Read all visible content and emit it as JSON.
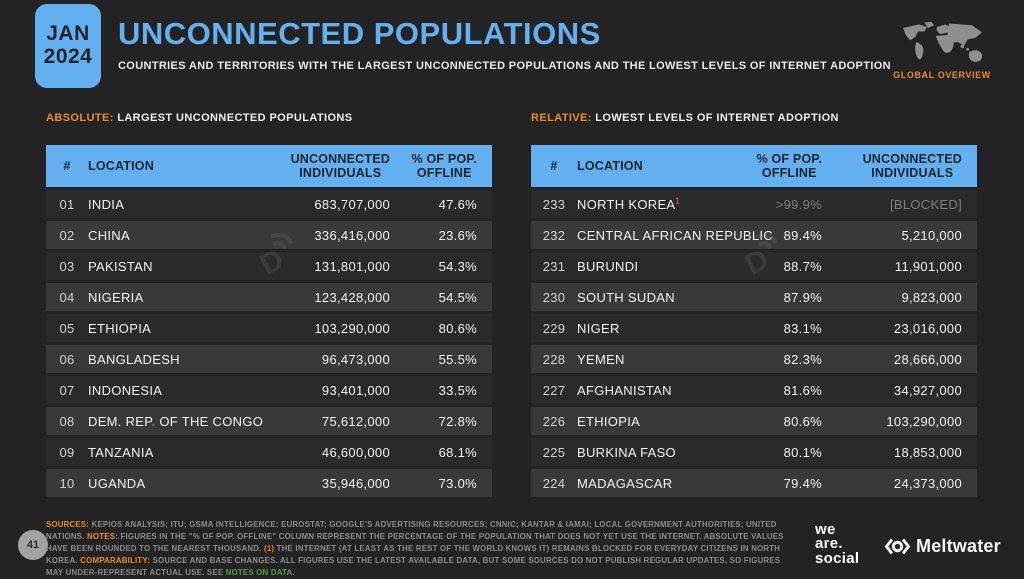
{
  "colors": {
    "accent_blue": "#62b0ef",
    "accent_orange": "#ee8a1f",
    "link_green": "#55a045",
    "background": "#232323",
    "row_odd": "#2a2a2a",
    "row_even": "#393939"
  },
  "header": {
    "date_line1": "JAN",
    "date_line2": "2024",
    "title": "UNCONNECTED POPULATIONS",
    "subtitle": "COUNTRIES AND TERRITORIES WITH THE LARGEST UNCONNECTED POPULATIONS AND THE LOWEST LEVELS OF INTERNET ADOPTION",
    "overview_label": "GLOBAL OVERVIEW"
  },
  "chart_data": [
    {
      "type": "table",
      "label_prefix": "ABSOLUTE:",
      "label_title": " LARGEST UNCONNECTED POPULATIONS",
      "columns": [
        "#",
        "LOCATION",
        "UNCONNECTED|INDIVIDUALS",
        "% OF POP.|OFFLINE"
      ],
      "rows": [
        {
          "rank": "01",
          "location": "INDIA",
          "v1": "683,707,000",
          "v2": "47.6%"
        },
        {
          "rank": "02",
          "location": "CHINA",
          "v1": "336,416,000",
          "v2": "23.6%"
        },
        {
          "rank": "03",
          "location": "PAKISTAN",
          "v1": "131,801,000",
          "v2": "54.3%"
        },
        {
          "rank": "04",
          "location": "NIGERIA",
          "v1": "123,428,000",
          "v2": "54.5%"
        },
        {
          "rank": "05",
          "location": "ETHIOPIA",
          "v1": "103,290,000",
          "v2": "80.6%"
        },
        {
          "rank": "06",
          "location": "BANGLADESH",
          "v1": "96,473,000",
          "v2": "55.5%"
        },
        {
          "rank": "07",
          "location": "INDONESIA",
          "v1": "93,401,000",
          "v2": "33.5%"
        },
        {
          "rank": "08",
          "location": "DEM. REP. OF THE CONGO",
          "v1": "75,612,000",
          "v2": "72.8%"
        },
        {
          "rank": "09",
          "location": "TANZANIA",
          "v1": "46,600,000",
          "v2": "68.1%"
        },
        {
          "rank": "10",
          "location": "UGANDA",
          "v1": "35,946,000",
          "v2": "73.0%"
        }
      ]
    },
    {
      "type": "table",
      "label_prefix": "RELATIVE:",
      "label_title": " LOWEST LEVELS OF INTERNET ADOPTION",
      "columns": [
        "#",
        "LOCATION",
        "% OF POP.|OFFLINE",
        "UNCONNECTED|INDIVIDUALS"
      ],
      "rows": [
        {
          "rank": "233",
          "location": "NORTH KOREA",
          "sup": "1",
          "v1": ">99.9%",
          "v2": "[BLOCKED]",
          "muted": true
        },
        {
          "rank": "232",
          "location": "CENTRAL AFRICAN REPUBLIC",
          "v1": "89.4%",
          "v2": "5,210,000"
        },
        {
          "rank": "231",
          "location": "BURUNDI",
          "v1": "88.7%",
          "v2": "11,901,000"
        },
        {
          "rank": "230",
          "location": "SOUTH SUDAN",
          "v1": "87.9%",
          "v2": "9,823,000"
        },
        {
          "rank": "229",
          "location": "NIGER",
          "v1": "83.1%",
          "v2": "23,016,000"
        },
        {
          "rank": "228",
          "location": "YEMEN",
          "v1": "82.3%",
          "v2": "28,666,000"
        },
        {
          "rank": "227",
          "location": "AFGHANISTAN",
          "v1": "81.6%",
          "v2": "34,927,000"
        },
        {
          "rank": "226",
          "location": "ETHIOPIA",
          "v1": "80.6%",
          "v2": "103,290,000"
        },
        {
          "rank": "225",
          "location": "BURKINA FASO",
          "v1": "80.1%",
          "v2": "18,853,000"
        },
        {
          "rank": "224",
          "location": "MADAGASCAR",
          "v1": "79.4%",
          "v2": "24,373,000"
        }
      ]
    }
  ],
  "footer": {
    "page_number": "41",
    "segments": [
      {
        "t": "SOURCES:",
        "s": "orange-bold"
      },
      {
        "t": " KEPIOS ANALYSIS; ITU; GSMA INTELLIGENCE; EUROSTAT; GOOGLE'S ADVERTISING RESOURCES; CNNIC; KANTAR & IAMAI; LOCAL GOVERNMENT AUTHORITIES; UNITED NATIONS. "
      },
      {
        "t": "NOTES:",
        "s": "orange-bold"
      },
      {
        "t": " FIGURES IN THE \"% OF POP. OFFLINE\" COLUMN REPRESENT THE PERCENTAGE OF THE POPULATION THAT DOES NOT YET USE THE INTERNET. ABSOLUTE VALUES HAVE BEEN ROUNDED TO THE NEAREST THOUSAND. "
      },
      {
        "t": "(1)",
        "s": "orange"
      },
      {
        "t": " THE INTERNET (AT LEAST AS THE REST OF THE WORLD KNOWS IT) REMAINS BLOCKED FOR EVERYDAY CITIZENS IN NORTH KOREA. "
      },
      {
        "t": "COMPARABILITY:",
        "s": "orange-bold"
      },
      {
        "t": " SOURCE AND BASE CHANGES. ALL FIGURES USE THE LATEST AVAILABLE DATA, BUT SOME SOURCES DO NOT PUBLISH REGULAR UPDATES, SO FIGURES MAY UNDER-REPRESENT ACTUAL USE. SEE "
      },
      {
        "t": "NOTES ON DATA",
        "s": "green"
      },
      {
        "t": "."
      }
    ],
    "wearesocial_lines": [
      "we",
      "are.",
      "social"
    ],
    "meltwater_label": "Meltwater"
  }
}
